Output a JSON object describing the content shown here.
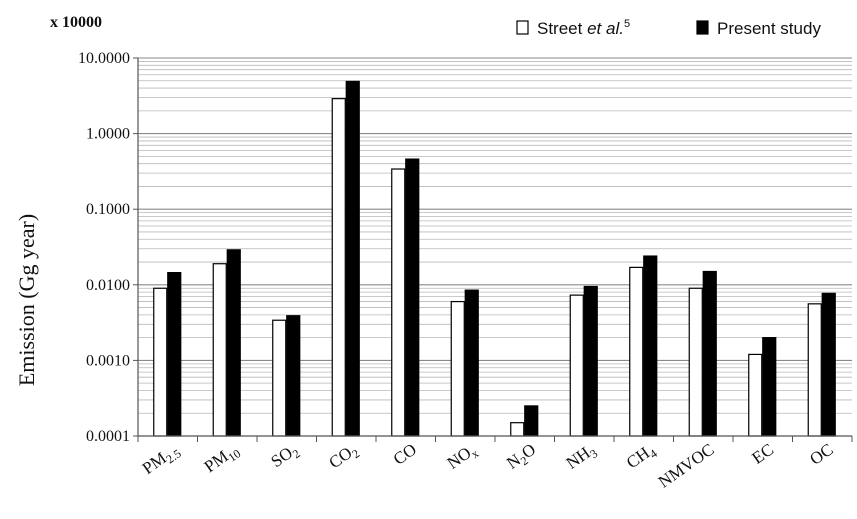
{
  "chart_data": {
    "type": "bar",
    "multiplier_label": "x 10000",
    "ylabel": "Emission (Gg year)",
    "yscale": "log",
    "ylim": [
      0.0001,
      10
    ],
    "yticks": [
      "0.0001",
      "0.0010",
      "0.0100",
      "0.1000",
      "1.0000",
      "10.0000"
    ],
    "categories": [
      {
        "main": "PM",
        "sub": "2.5"
      },
      {
        "main": "PM",
        "sub": "10"
      },
      {
        "main": "SO",
        "sub": "2"
      },
      {
        "main": "CO",
        "sub": "2"
      },
      {
        "main": "CO",
        "sub": ""
      },
      {
        "main": "NO",
        "sub": "x"
      },
      {
        "main": "N",
        "sub": "2",
        "tail": "O"
      },
      {
        "main": "NH",
        "sub": "3"
      },
      {
        "main": "CH",
        "sub": "4"
      },
      {
        "main": "NMVOC",
        "sub": ""
      },
      {
        "main": "EC",
        "sub": ""
      },
      {
        "main": "OC",
        "sub": ""
      }
    ],
    "series": [
      {
        "name": "Street et al.",
        "name_sup": "5",
        "color": "#ffffff",
        "values": [
          0.009,
          0.019,
          0.0034,
          2.9,
          0.34,
          0.006,
          0.00015,
          0.0073,
          0.017,
          0.009,
          0.0012,
          0.0056
        ]
      },
      {
        "name": "Present study",
        "name_sup": "",
        "color": "#000000",
        "values": [
          0.0145,
          0.029,
          0.0039,
          4.9,
          0.46,
          0.0085,
          0.00025,
          0.0095,
          0.024,
          0.015,
          0.002,
          0.0077
        ]
      }
    ],
    "grid": true,
    "legend_position": "top-right"
  }
}
